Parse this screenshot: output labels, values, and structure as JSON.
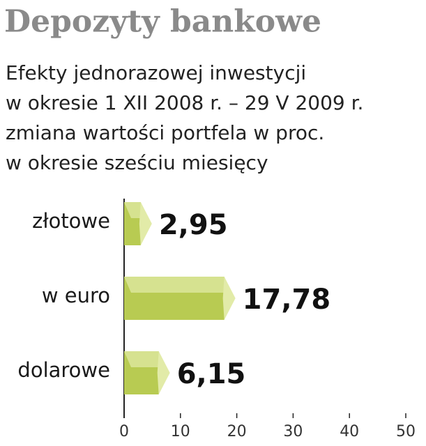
{
  "chart_data": {
    "type": "bar",
    "orientation": "horizontal",
    "title": "Depozyty bankowe",
    "subtitle": [
      "Efekty jednorazowej inwestycji",
      "w okresie 1 XII 2008 r. – 29 V 2009 r.",
      "zmiana wartości portfela w proc.",
      "w okresie sześciu miesięcy"
    ],
    "categories": [
      "złotowe",
      "w euro",
      "dolarowe"
    ],
    "values": [
      2.95,
      17.78,
      6.15
    ],
    "value_labels": [
      "2,95",
      "17,78",
      "6,15"
    ],
    "color": "#b8cb52",
    "xlim": [
      0,
      50
    ],
    "xticks": [
      0,
      10,
      20,
      30,
      40,
      50
    ]
  }
}
